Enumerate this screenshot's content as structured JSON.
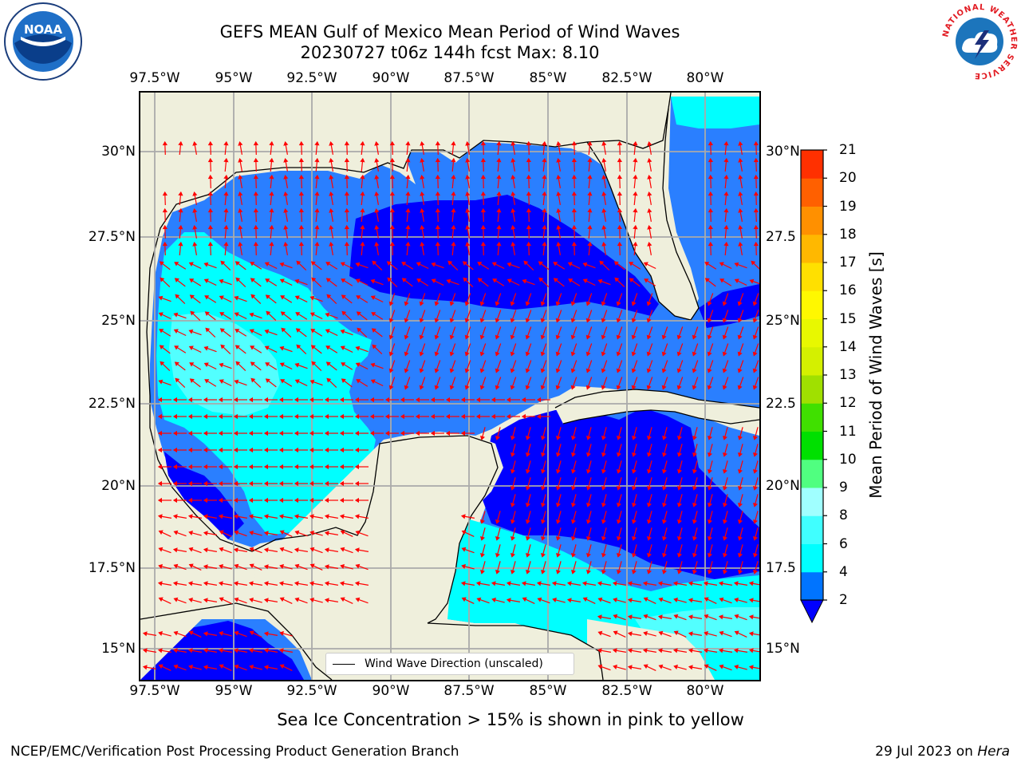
{
  "title": {
    "line1": "GEFS MEAN Gulf of Mexico Mean Period of Wind Waves",
    "line2": "20230727 t06z 144h fcst   Max: 8.10"
  },
  "axes": {
    "lon_ticks": [
      "97.5°W",
      "95°W",
      "92.5°W",
      "90°W",
      "87.5°W",
      "85°W",
      "82.5°W",
      "80°W"
    ],
    "lat_ticks_left": [
      "30°N",
      "27.5°N",
      "25°N",
      "22.5°N",
      "20°N",
      "17.5°N",
      "15°N"
    ],
    "lat_ticks_right": [
      "30°N",
      "27.5",
      "25°N",
      "22.5",
      "20°N",
      "17.5",
      "15°N"
    ]
  },
  "map_extent": {
    "lon_min": -98.0,
    "lon_max": -78.2,
    "lat_min": 14.0,
    "lat_max": 31.8
  },
  "vector_legend": "Wind Wave Direction (unscaled)",
  "colorbar": {
    "label": "Mean Period of Wind Waves [s]",
    "levels": [
      2,
      4,
      6,
      8,
      9,
      10,
      11,
      12,
      13,
      14,
      15,
      16,
      17,
      18,
      19,
      20,
      21
    ],
    "colors": [
      "#0074ff",
      "#00ffff",
      "#40ffff",
      "#a0ffff",
      "#50ff80",
      "#00e000",
      "#40e000",
      "#a0e000",
      "#d4f000",
      "#e8f800",
      "#fff800",
      "#ffe000",
      "#ffb800",
      "#ff9000",
      "#ff6000",
      "#ff3000",
      "#ff0000"
    ],
    "under_color": "#0000ff"
  },
  "field_colors": {
    "land": "#efefdc",
    "under_2s": "#0000ff",
    "band_2_4": "#2a7fff",
    "band_4_6": "#00ffff",
    "band_6_8": "#52ffff",
    "arrow": "#ff0000"
  },
  "note": "Sea Ice Concentration > 15% is shown in pink to yellow",
  "footer": {
    "left": "NCEP/EMC/Verification Post Processing Product Generation Branch",
    "right_date": "29 Jul 2023 on ",
    "right_host": "Hera"
  },
  "logos": {
    "noaa_text": "NOAA",
    "nws_ring_text": "NATIONAL WEATHER SERVICE"
  }
}
